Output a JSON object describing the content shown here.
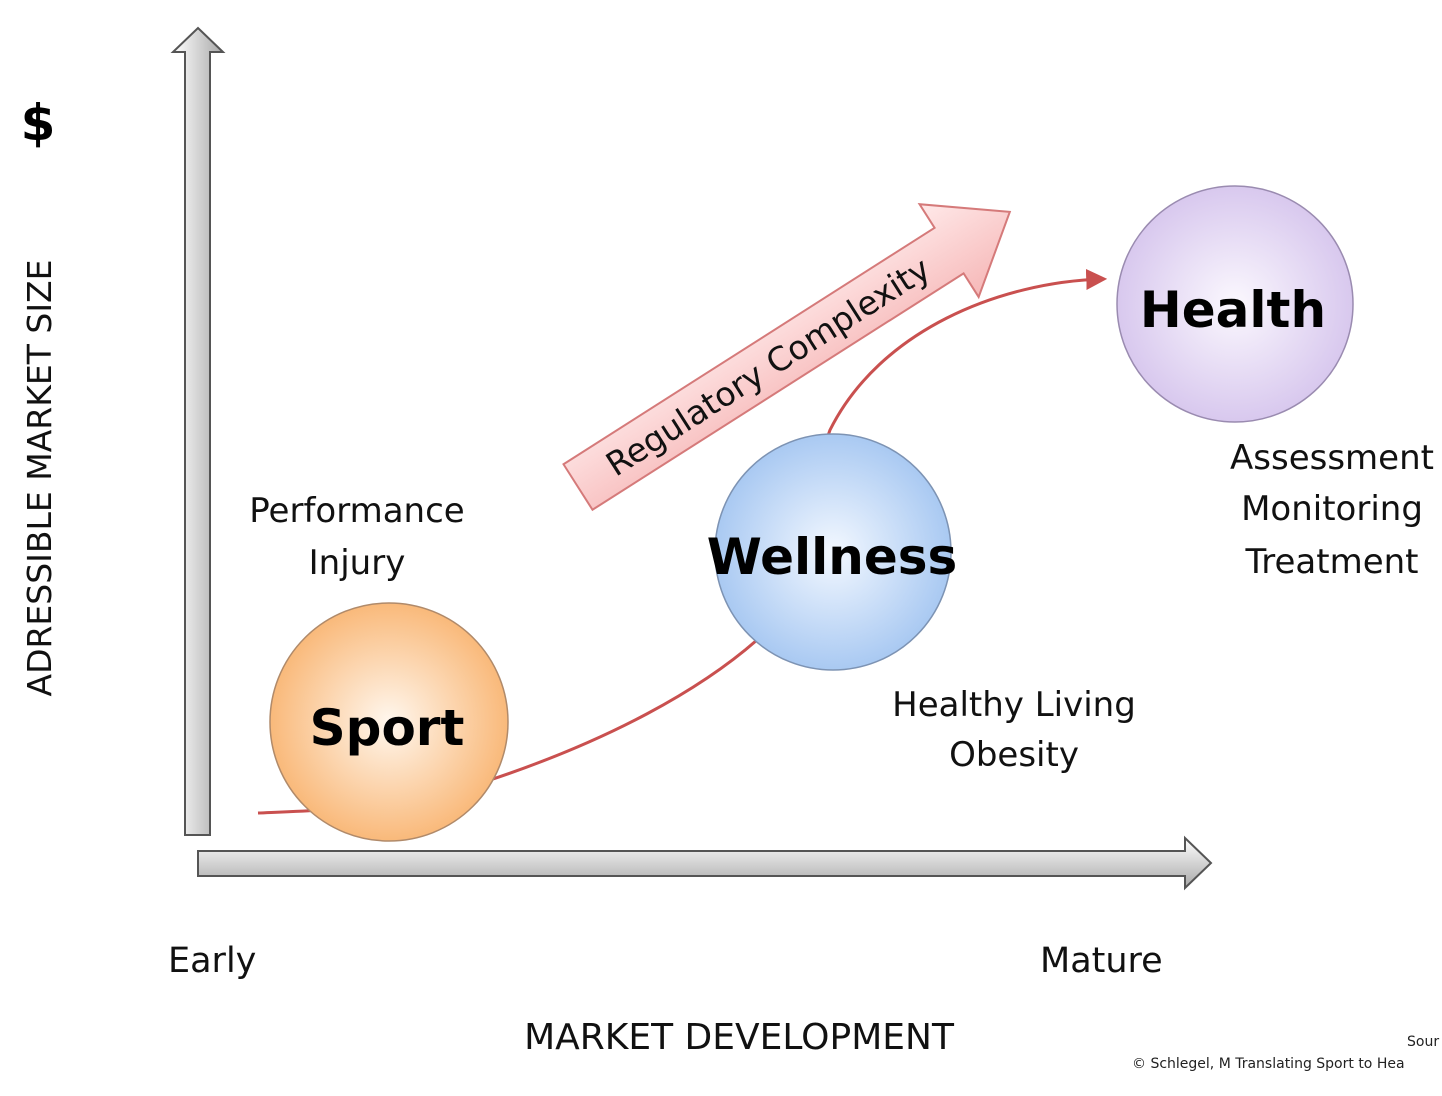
{
  "axes": {
    "y_title": "ADRESSIBLE MARKET SIZE",
    "y_symbol": "$",
    "x_title": "MARKET DEVELOPMENT",
    "x_start": "Early",
    "x_end": "Mature"
  },
  "stages": [
    {
      "label": "Sport",
      "notes": [
        "Performance",
        "Injury"
      ],
      "color": "#f9b97a"
    },
    {
      "label": "Wellness",
      "notes": [
        "Healthy Living",
        "Obesity"
      ],
      "color": "#a9c9f2"
    },
    {
      "label": "Health",
      "notes": [
        "Assessment",
        "Monitoring",
        "Treatment"
      ],
      "color": "#d8c8ee"
    }
  ],
  "regulatory_arrow": {
    "label": "Regulatory Complexity",
    "color": "#f6b8b8"
  },
  "curve_color": "#c9504f",
  "source": {
    "line1": "Sour",
    "line2": "©  Schlegel, M Translating  Sport to Hea"
  }
}
